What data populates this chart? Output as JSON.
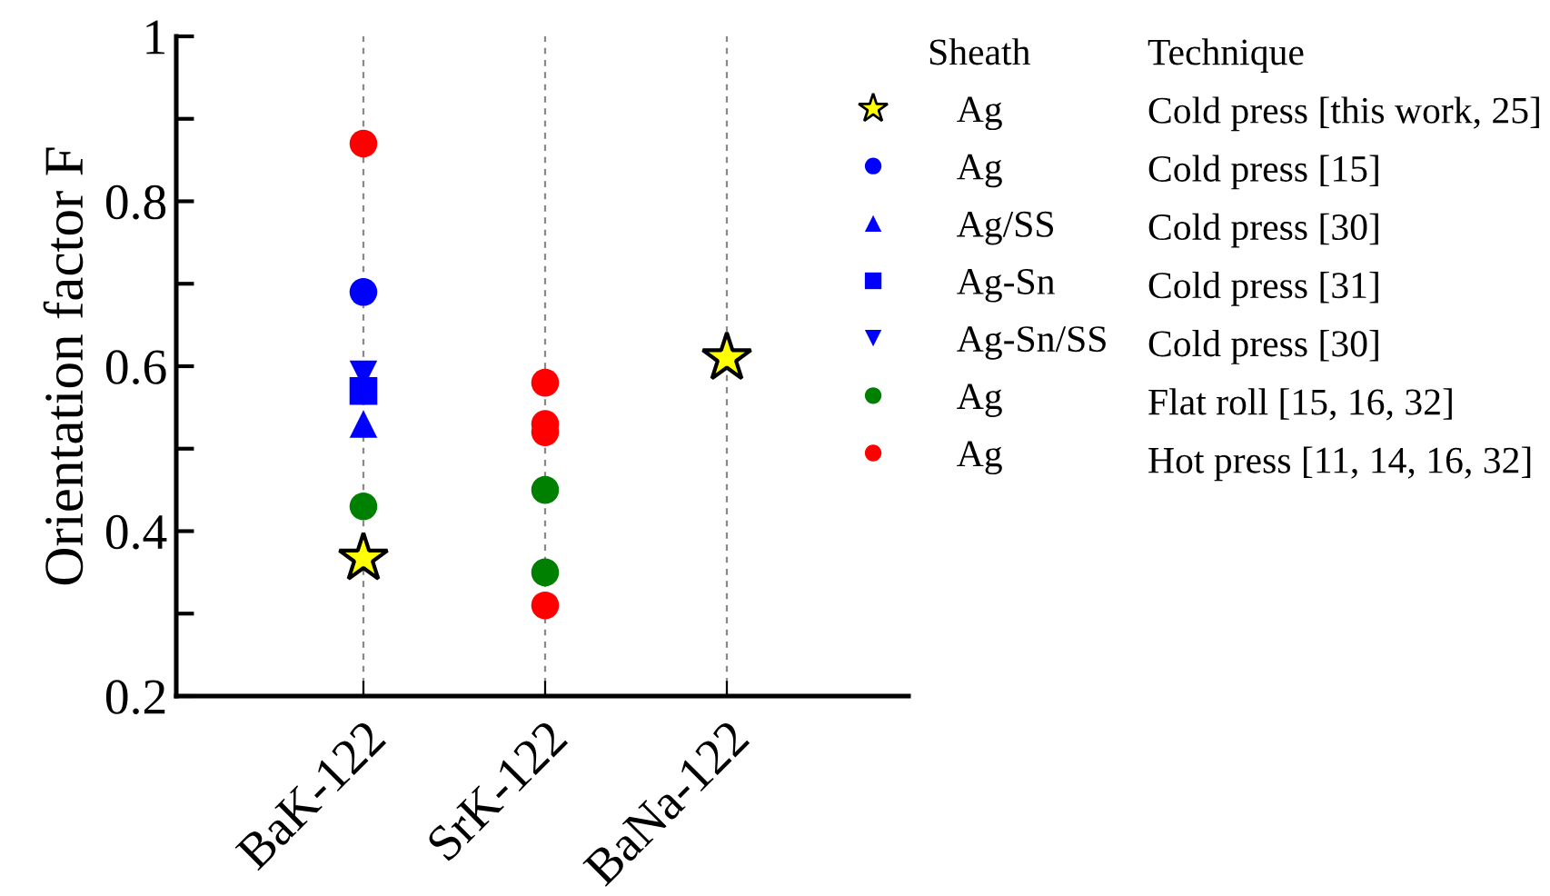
{
  "chart_data": {
    "type": "scatter",
    "ylabel": "Orientation factor F",
    "categories": [
      "BaK-122",
      "SrK-122",
      "BaNa-122"
    ],
    "ylim": [
      0.2,
      1.0
    ],
    "yticks": [
      0.2,
      0.4,
      0.6,
      0.8,
      {
        "value": 1.0,
        "label": "1"
      }
    ],
    "grid": "x",
    "legend": "right",
    "legend_title": "Sheath",
    "series": [
      {
        "name": "Ag",
        "color": "#ffff00",
        "marker": "star",
        "x": [
          "BaK-122",
          "BaNa-122"
        ],
        "values": [
          0.367,
          0.61
        ]
      },
      {
        "name": "Ag",
        "color": "#0000ff",
        "marker": "circle",
        "x": [
          "BaK-122"
        ],
        "values": [
          0.69
        ]
      },
      {
        "name": "Ag/SS",
        "color": "#0000ff",
        "marker": "triangle",
        "x": [
          "BaK-122"
        ],
        "values": [
          0.53
        ]
      },
      {
        "name": "Ag-Sn",
        "color": "#0000ff",
        "marker": "square",
        "x": [
          "BaK-122"
        ],
        "values": [
          0.57
        ]
      },
      {
        "name": "Ag-Sn/SS",
        "color": "#0000ff",
        "marker": "triangle-down",
        "x": [
          "BaK-122"
        ],
        "values": [
          0.59
        ]
      },
      {
        "name": "Ag",
        "color": "#008000",
        "marker": "circle",
        "x": [
          "BaK-122",
          "SrK-122",
          "SrK-122"
        ],
        "values": [
          0.43,
          0.45,
          0.35
        ]
      },
      {
        "name": "Ag",
        "color": "#ff0000",
        "marker": "circle",
        "x": [
          "BaK-122",
          "SrK-122",
          "SrK-122",
          "SrK-122",
          "SrK-122"
        ],
        "values": [
          0.87,
          0.58,
          0.53,
          0.52,
          0.31
        ]
      }
    ],
    "annotations": [
      "Technique",
      "Cold press [this work, 25]",
      "Cold press [15]",
      "Cold press [30]",
      "Cold press [31]",
      "Cold press [30]",
      "Flat roll [15, 16, 32]",
      "Hot press [11, 14, 16, 32]"
    ]
  }
}
